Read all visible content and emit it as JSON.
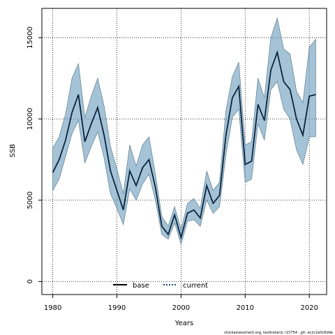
{
  "chart_data": {
    "type": "line",
    "xlabel": "Years",
    "ylabel": "SSB",
    "xlim": [
      1978.3,
      2022.7
    ],
    "ylim": [
      -800,
      16800
    ],
    "x_ticks": [
      1980,
      1990,
      2000,
      2010,
      2020
    ],
    "y_ticks": [
      0,
      5000,
      10000,
      15000
    ],
    "grid": true,
    "legend_position": "bottom-center",
    "x": [
      1980,
      1981,
      1982,
      1983,
      1984,
      1985,
      1986,
      1987,
      1988,
      1989,
      1990,
      1991,
      1992,
      1993,
      1994,
      1995,
      1996,
      1997,
      1998,
      1999,
      2000,
      2001,
      2002,
      2003,
      2004,
      2005,
      2006,
      2007,
      2008,
      2009,
      2010,
      2011,
      2012,
      2013,
      2014,
      2015,
      2016,
      2017,
      2018,
      2019,
      2020,
      2021
    ],
    "series": [
      {
        "name": "base",
        "color": "#000000",
        "style": "solid",
        "values": [
          6700,
          7500,
          8700,
          10400,
          11500,
          8600,
          9700,
          10700,
          9000,
          6800,
          5600,
          4400,
          6800,
          5900,
          7000,
          7500,
          5800,
          3400,
          2900,
          4100,
          2700,
          4200,
          4400,
          3900,
          5900,
          4800,
          5300,
          9000,
          11300,
          12000,
          7200,
          7400,
          10900,
          9900,
          13000,
          14100,
          12300,
          11800,
          10000,
          9000,
          11400,
          11500
        ]
      },
      {
        "name": "current",
        "color": "#15477a",
        "style": "dotted",
        "values": [
          6700,
          7500,
          8700,
          10400,
          11500,
          8600,
          9700,
          10700,
          9000,
          6800,
          5600,
          4400,
          6800,
          5900,
          7000,
          7500,
          5800,
          3400,
          2900,
          4100,
          2700,
          4200,
          4400,
          3900,
          5900,
          4800,
          5300,
          9000,
          11300,
          12000,
          7200,
          7400,
          10900,
          9900,
          13000,
          14100,
          12300,
          11800,
          10000,
          9000,
          11400,
          11500
        ]
      }
    ],
    "confidence_band": {
      "color": "#6d9ebd",
      "lower": [
        5600,
        6300,
        7700,
        9100,
        9900,
        7300,
        8300,
        9200,
        7600,
        5400,
        4500,
        3500,
        5700,
        5000,
        6000,
        6600,
        5000,
        2900,
        2600,
        3600,
        2300,
        3700,
        3800,
        3400,
        5000,
        4200,
        4600,
        7800,
        10100,
        10600,
        6100,
        6300,
        9700,
        8700,
        11800,
        12300,
        10600,
        10000,
        8100,
        7200,
        8900,
        8900
      ],
      "upper": [
        8200,
        8900,
        10300,
        12500,
        13400,
        10100,
        11400,
        12500,
        10800,
        8300,
        6900,
        5400,
        8400,
        7100,
        8400,
        8900,
        6600,
        4000,
        3400,
        4600,
        3200,
        4800,
        5100,
        4500,
        6800,
        5600,
        6100,
        10500,
        12600,
        13500,
        8400,
        8600,
        12500,
        11300,
        15000,
        16200,
        14300,
        14000,
        11700,
        11000,
        14400,
        14900
      ]
    },
    "footer_text": "stockassessment.org, testIceland, r15754 ,  git: ec2c2a0c6dde"
  }
}
